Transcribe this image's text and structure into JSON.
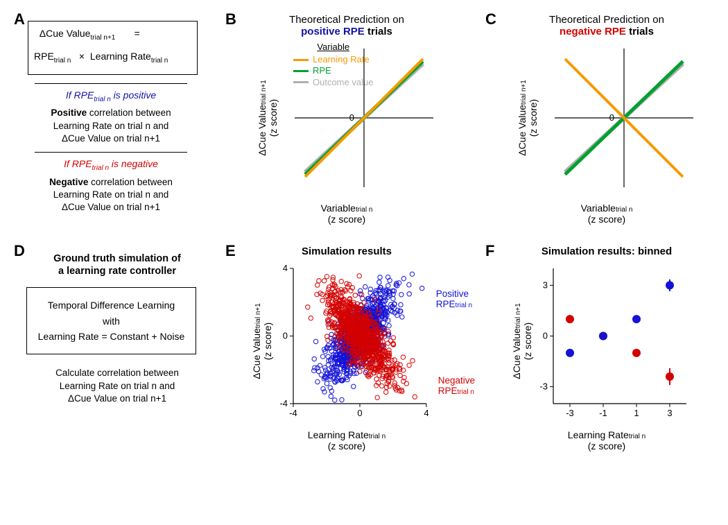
{
  "colors": {
    "blue": "#1212d8",
    "red": "#d40000",
    "gray": "#b0b0b0",
    "orange": "#f59b00",
    "green": "#00a030",
    "axis": "#000000",
    "background": "#ffffff"
  },
  "panelA": {
    "label": "A",
    "equation": {
      "line1_left": "ΔCue Value",
      "line1_sub": "trial n+1",
      "line1_right": "=",
      "line2_a": "RPE",
      "line2_a_sub": "trial n",
      "line2_mid": "×",
      "line2_b": "Learning Rate",
      "line2_b_sub": "trial n"
    },
    "condPos": {
      "label_pre": "If RPE",
      "label_sub": "trial n",
      "label_post": " is positive",
      "text_bold": "Positive",
      "text_rest1": "correlation between",
      "text_rest2": "Learning Rate on trial n and",
      "text_rest3": "ΔCue Value on trial n+1"
    },
    "condNeg": {
      "label_pre": "If RPE",
      "label_sub": "trial n",
      "label_post": " is negative",
      "text_bold": "Negative",
      "text_rest1": "correlation between",
      "text_rest2": "Learning Rate on trial n and",
      "text_rest3": "ΔCue Value on trial n+1"
    }
  },
  "panelB": {
    "label": "B",
    "title_plain": "Theoretical Prediction on",
    "title_em": "positive RPE",
    "title_tail": " trials",
    "legend": {
      "title": "Variable",
      "items": [
        {
          "name": "Learning Rate",
          "color": "#f59b00"
        },
        {
          "name": "RPE",
          "color": "#00a030"
        },
        {
          "name": "Outcome value",
          "color": "#b0b0b0"
        }
      ]
    },
    "lines": [
      {
        "name": "gray",
        "color": "#b0b0b0",
        "x1": -1,
        "y1": -0.92,
        "x2": 1,
        "y2": 0.92,
        "width": 6
      },
      {
        "name": "green",
        "color": "#00a030",
        "x1": -1,
        "y1": -0.96,
        "x2": 1,
        "y2": 0.96,
        "width": 5
      },
      {
        "name": "orange",
        "color": "#f59b00",
        "x1": -1,
        "y1": -1.0,
        "x2": 1,
        "y2": 1.0,
        "width": 4
      }
    ],
    "ylabel_main": "ΔCue Value",
    "ylabel_sub": "trial n+1",
    "ylabel_unit": "(z score)",
    "xlabel_main": "Variable",
    "xlabel_sub": "trial n",
    "xlabel_unit": "(z score)",
    "ytick": "0"
  },
  "panelC": {
    "label": "C",
    "title_plain": "Theoretical Prediction on",
    "title_em": "negative RPE",
    "title_tail": " trials",
    "lines": [
      {
        "name": "gray",
        "color": "#b0b0b0",
        "x1": -1,
        "y1": -0.92,
        "x2": 1,
        "y2": 0.92,
        "width": 6
      },
      {
        "name": "green",
        "color": "#00a030",
        "x1": -1,
        "y1": -0.96,
        "x2": 1,
        "y2": 0.96,
        "width": 5
      },
      {
        "name": "orange",
        "color": "#f59b00",
        "x1": -1,
        "y1": 1.0,
        "x2": 1,
        "y2": -1.0,
        "width": 4
      }
    ],
    "ylabel_main": "ΔCue Value",
    "ylabel_sub": "trial n+1",
    "ylabel_unit": "(z score)",
    "xlabel_main": "Variable",
    "xlabel_sub": "trial n",
    "xlabel_unit": "(z score)",
    "ytick": "0"
  },
  "panelD": {
    "label": "D",
    "title_l1": "Ground truth simulation of",
    "title_l2": "a learning rate controller",
    "box_l1": "Temporal Difference Learning",
    "box_l2": "with",
    "box_l3": "Learning Rate = Constant + Noise",
    "text_l1": "Calculate correlation between",
    "text_l2": "Learning Rate on trial n and",
    "text_l3": "ΔCue Value on trial n+1"
  },
  "panelE": {
    "label": "E",
    "title": "Simulation results",
    "xlim": [
      -4,
      4
    ],
    "ylim": [
      -4,
      4
    ],
    "xticks": [
      -4,
      0,
      4
    ],
    "yticks": [
      -4,
      0,
      4
    ],
    "ylabel_main": "ΔCue Value",
    "ylabel_sub": "trial n+1",
    "ylabel_unit": "(z score)",
    "xlabel_main": "Learning Rate",
    "xlabel_sub": "trial n",
    "xlabel_unit": "(z score)",
    "series": {
      "blue": {
        "color": "#1212d8",
        "n": 900,
        "slope": 0.95,
        "noise": 0.9,
        "label_l1": "Positive",
        "label_l2": "RPE",
        "label_sub": "trial n"
      },
      "red": {
        "color": "#d40000",
        "n": 900,
        "slope": -0.95,
        "noise": 0.9,
        "label_l1": "Negative",
        "label_l2": "RPE",
        "label_sub": "trial n"
      }
    },
    "marker_radius": 3.2,
    "marker_stroke": 1.2
  },
  "panelF": {
    "label": "F",
    "title": "Simulation results: binned",
    "xlim": [
      -4,
      4
    ],
    "ylim": [
      -4,
      4
    ],
    "xticks": [
      -3,
      -1,
      1,
      3
    ],
    "yticks": [
      -3,
      0,
      3
    ],
    "ylabel_main": "ΔCue Value",
    "ylabel_sub": "trial n+1",
    "ylabel_unit": "(z score)",
    "xlabel_main": "Learning Rate",
    "xlabel_sub": "trial n",
    "xlabel_unit": "(z score)",
    "points_blue": [
      {
        "x": -3,
        "y": -1.0,
        "err": 0
      },
      {
        "x": -1,
        "y": 0.0,
        "err": 0
      },
      {
        "x": 1,
        "y": 1.0,
        "err": 0
      },
      {
        "x": 3,
        "y": 3.0,
        "err": 0.35
      }
    ],
    "points_red": [
      {
        "x": -3,
        "y": 1.0,
        "err": 0
      },
      {
        "x": -1,
        "y": 0.0,
        "err": 0
      },
      {
        "x": 1,
        "y": -1.0,
        "err": 0
      },
      {
        "x": 3,
        "y": -2.4,
        "err": 0.5
      }
    ],
    "marker_radius": 6,
    "colors": {
      "blue": "#1212d8",
      "red": "#d40000"
    }
  }
}
